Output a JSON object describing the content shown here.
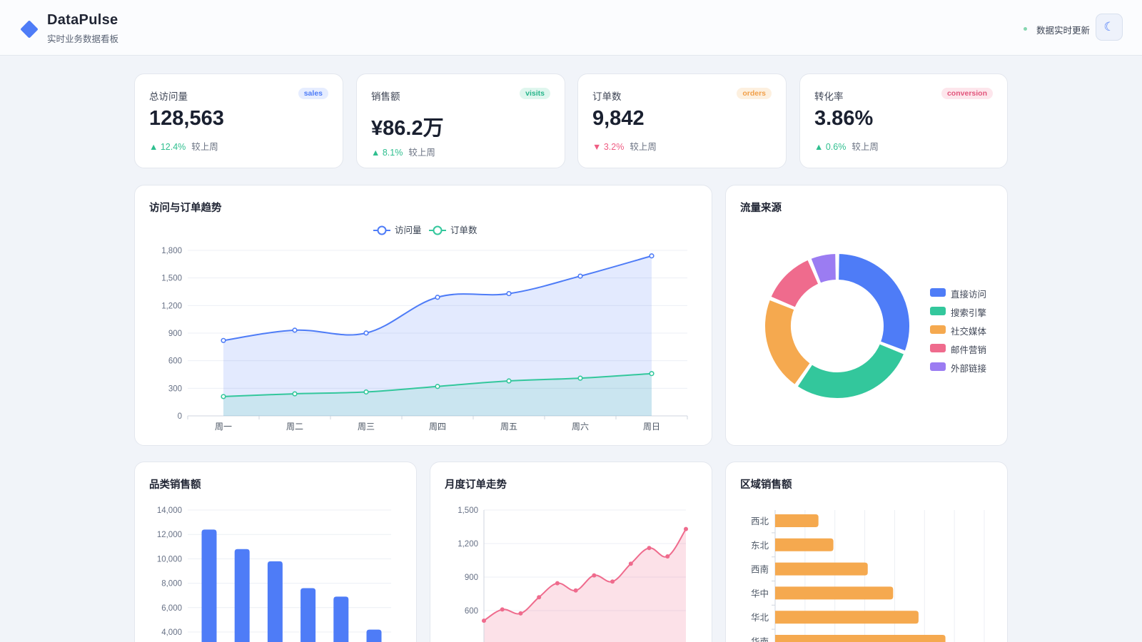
{
  "header": {
    "title": "DataPulse",
    "subtitle": "实时业务数据看板",
    "live_text": "数据实时更新",
    "theme_icon": "☾"
  },
  "kpis": [
    {
      "label": "总访问量",
      "badge": "sales",
      "value": "128,563",
      "delta": "▲ 12.4%",
      "compare": "较上周",
      "badge_color": "#4e7cf7",
      "badge_bg": "#e6edff",
      "delta_color": "#2fbf8f"
    },
    {
      "label": "销售额",
      "badge": "visits",
      "value": "¥86.2万",
      "delta": "▲ 8.1%",
      "compare": "较上周",
      "badge_color": "#27b58a",
      "badge_bg": "#dff6ee",
      "delta_color": "#2fbf8f"
    },
    {
      "label": "订单数",
      "badge": "orders",
      "value": "9,842",
      "delta": "▼ 3.2%",
      "compare": "较上周",
      "badge_color": "#f1a04a",
      "badge_bg": "#fdf0df",
      "delta_color": "#ef5d83"
    },
    {
      "label": "转化率",
      "badge": "conversion",
      "value": "3.86%",
      "delta": "▲ 0.6%",
      "compare": "较上周",
      "badge_color": "#e2557c",
      "badge_bg": "#fde6ec",
      "delta_color": "#2fbf8f"
    }
  ],
  "trend_card": {
    "title": "访问与订单趋势"
  },
  "source_card": {
    "title": "流量来源"
  },
  "category_card": {
    "title": "品类销售额"
  },
  "monthly_card": {
    "title": "月度订单走势"
  },
  "region_card": {
    "title": "区域销售额"
  },
  "colors": {
    "blue": "#4e7cf7",
    "green": "#33c79c",
    "orange": "#f5a94f",
    "pink": "#ef6b8d",
    "purple": "#9b7cf2"
  },
  "chart_data": [
    {
      "id": "trend",
      "type": "line",
      "categories": [
        "周一",
        "周二",
        "周三",
        "周四",
        "周五",
        "周六",
        "周日"
      ],
      "series": [
        {
          "name": "访问量",
          "values": [
            820,
            932,
            901,
            1290,
            1330,
            1520,
            1740
          ],
          "color": "#4e7cf7"
        },
        {
          "name": "订单数",
          "values": [
            210,
            240,
            260,
            320,
            380,
            410,
            460
          ],
          "color": "#33c79c"
        }
      ],
      "yticks": [
        "0",
        "300",
        "600",
        "900",
        "1,200",
        "1,500",
        "1,800"
      ],
      "ylim": [
        0,
        1800
      ],
      "legend": "top"
    },
    {
      "id": "source",
      "type": "pie",
      "labels": [
        "直接访问",
        "搜索引擎",
        "社交媒体",
        "邮件营销",
        "外部链接"
      ],
      "values": [
        335,
        310,
        234,
        135,
        68
      ],
      "colors": [
        "#4e7cf7",
        "#33c79c",
        "#f5a94f",
        "#ef6b8d",
        "#9b7cf2"
      ],
      "legend": "right"
    },
    {
      "id": "category",
      "type": "bar",
      "values": [
        12400,
        10800,
        9800,
        7600,
        6900,
        4200
      ],
      "yticks": [
        "4,000",
        "6,000",
        "8,000",
        "10,000",
        "12,000",
        "14,000"
      ],
      "ylim": [
        4000,
        14000
      ],
      "color": "#4e7cf7"
    },
    {
      "id": "monthly",
      "type": "area",
      "values": [
        510,
        610,
        575,
        720,
        845,
        780,
        915,
        860,
        1020,
        1160,
        1085,
        1330
      ],
      "yticks": [
        "600",
        "900",
        "1,200",
        "1,500"
      ],
      "ylim": [
        600,
        1500
      ],
      "color": "#ef6b8d"
    },
    {
      "id": "region",
      "type": "bar",
      "orientation": "horizontal",
      "categories": [
        "西北",
        "东北",
        "西南",
        "华中",
        "华北",
        "华南"
      ],
      "values": [
        1450,
        1950,
        3100,
        3950,
        4800,
        5700
      ],
      "xlim": [
        0,
        7000
      ],
      "color": "#f5a94f"
    }
  ]
}
